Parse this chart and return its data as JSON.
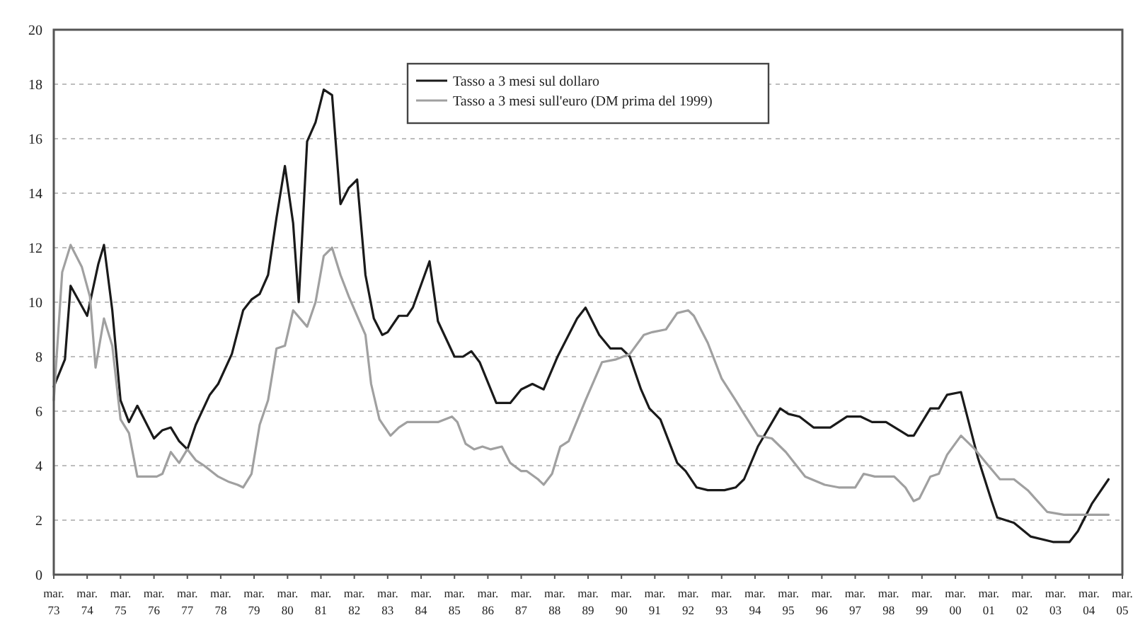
{
  "chart_data": {
    "type": "line",
    "ylim": [
      0,
      20
    ],
    "yticks": [
      0,
      2,
      4,
      6,
      8,
      10,
      12,
      14,
      16,
      18,
      20
    ],
    "xlim": [
      "1973-03",
      "2005-03"
    ],
    "xticks": [
      {
        "value": "1973-03",
        "label": "mar.\n73"
      },
      {
        "value": "1974-03",
        "label": "mar.\n74"
      },
      {
        "value": "1975-03",
        "label": "mar.\n75"
      },
      {
        "value": "1976-03",
        "label": "mar.\n76"
      },
      {
        "value": "1977-03",
        "label": "mar.\n77"
      },
      {
        "value": "1978-03",
        "label": "mar.\n78"
      },
      {
        "value": "1979-03",
        "label": "mar.\n79"
      },
      {
        "value": "1980-03",
        "label": "mar.\n80"
      },
      {
        "value": "1981-03",
        "label": "mar.\n81"
      },
      {
        "value": "1982-03",
        "label": "mar.\n82"
      },
      {
        "value": "1983-03",
        "label": "mar.\n83"
      },
      {
        "value": "1984-03",
        "label": "mar.\n84"
      },
      {
        "value": "1985-03",
        "label": "mar.\n85"
      },
      {
        "value": "1986-03",
        "label": "mar.\n86"
      },
      {
        "value": "1987-03",
        "label": "mar.\n87"
      },
      {
        "value": "1988-03",
        "label": "mar.\n88"
      },
      {
        "value": "1989-03",
        "label": "mar.\n89"
      },
      {
        "value": "1990-03",
        "label": "mar.\n90"
      },
      {
        "value": "1991-03",
        "label": "mar.\n91"
      },
      {
        "value": "1992-03",
        "label": "mar.\n92"
      },
      {
        "value": "1993-03",
        "label": "mar.\n93"
      },
      {
        "value": "1994-03",
        "label": "mar.\n94"
      },
      {
        "value": "1995-03",
        "label": "mar.\n95"
      },
      {
        "value": "1996-03",
        "label": "mar.\n96"
      },
      {
        "value": "1997-03",
        "label": "mar.\n97"
      },
      {
        "value": "1998-03",
        "label": "mar.\n98"
      },
      {
        "value": "1999-03",
        "label": "mar.\n99"
      },
      {
        "value": "2000-03",
        "label": "mar.\n00"
      },
      {
        "value": "2001-03",
        "label": "mar.\n01"
      },
      {
        "value": "2002-03",
        "label": "mar.\n02"
      },
      {
        "value": "2003-03",
        "label": "mar.\n03"
      },
      {
        "value": "2004-03",
        "label": "mar.\n04"
      },
      {
        "value": "2005-03",
        "label": "mar.\n05"
      }
    ],
    "grid": "y",
    "legend": "top",
    "marker": "none",
    "line_style": "solid",
    "series": [
      {
        "name": "Tasso a 3 mesi sul dollaro",
        "color": "#1a1a1a",
        "x": [
          "1973-03",
          "1973-07",
          "1973-09",
          "1974-03",
          "1974-07",
          "1974-09",
          "1974-12",
          "1975-03",
          "1975-06",
          "1975-09",
          "1976-03",
          "1976-06",
          "1976-09",
          "1976-12",
          "1977-03",
          "1977-06",
          "1977-11",
          "1978-02",
          "1978-07",
          "1978-11",
          "1979-02",
          "1979-05",
          "1979-08",
          "1979-11",
          "1980-02",
          "1980-05",
          "1980-07",
          "1980-10",
          "1981-01",
          "1981-04",
          "1981-07",
          "1981-10",
          "1982-01",
          "1982-04",
          "1982-07",
          "1982-10",
          "1983-01",
          "1983-03",
          "1983-07",
          "1983-10",
          "1983-12",
          "1984-06",
          "1984-09",
          "1985-03",
          "1985-06",
          "1985-09",
          "1985-12",
          "1986-06",
          "1986-11",
          "1987-03",
          "1987-07",
          "1987-11",
          "1988-04",
          "1988-11",
          "1989-02",
          "1989-07",
          "1989-11",
          "1990-03",
          "1990-06",
          "1990-10",
          "1991-01",
          "1991-05",
          "1991-11",
          "1992-02",
          "1992-06",
          "1992-10",
          "1993-04",
          "1993-08",
          "1993-11",
          "1994-04",
          "1994-12",
          "1995-03",
          "1995-07",
          "1995-12",
          "1996-06",
          "1996-12",
          "1997-05",
          "1997-09",
          "1998-02",
          "1998-10",
          "1998-12",
          "1999-06",
          "1999-09",
          "1999-12",
          "2000-05",
          "2000-11",
          "2001-04",
          "2001-06",
          "2001-12",
          "2002-06",
          "2003-02",
          "2003-08",
          "2003-11",
          "2004-04",
          "2004-10"
        ],
        "values": [
          6.9,
          7.9,
          10.6,
          9.5,
          11.4,
          12.1,
          9.7,
          6.4,
          5.6,
          6.2,
          5.0,
          5.3,
          5.4,
          4.9,
          4.6,
          5.5,
          6.6,
          7.0,
          8.1,
          9.7,
          10.1,
          10.3,
          11.0,
          13.1,
          15.0,
          12.9,
          10.0,
          15.9,
          16.6,
          17.8,
          17.6,
          13.6,
          14.2,
          14.5,
          11.0,
          9.4,
          8.8,
          8.9,
          9.5,
          9.5,
          9.8,
          11.5,
          9.3,
          8.0,
          8.0,
          8.2,
          7.8,
          6.3,
          6.3,
          6.8,
          7.0,
          6.8,
          8.0,
          9.4,
          9.8,
          8.8,
          8.3,
          8.3,
          8.0,
          6.8,
          6.1,
          5.7,
          4.1,
          3.8,
          3.2,
          3.1,
          3.1,
          3.2,
          3.5,
          4.7,
          6.1,
          5.9,
          5.8,
          5.4,
          5.4,
          5.8,
          5.8,
          5.6,
          5.6,
          5.1,
          5.1,
          6.1,
          6.1,
          6.6,
          6.7,
          4.3,
          2.7,
          2.1,
          1.9,
          1.4,
          1.2,
          1.2,
          1.6,
          2.6,
          3.5
        ]
      },
      {
        "name": "Tasso a 3 mesi sull'euro (DM prima del 1999)",
        "color": "#a0a0a0",
        "x": [
          "1973-03",
          "1973-06",
          "1973-09",
          "1974-01",
          "1974-04",
          "1974-06",
          "1974-09",
          "1974-12",
          "1975-03",
          "1975-06",
          "1975-09",
          "1975-12",
          "1976-04",
          "1976-06",
          "1976-09",
          "1976-12",
          "1977-03",
          "1977-06",
          "1977-09",
          "1978-02",
          "1978-06",
          "1978-09",
          "1978-11",
          "1979-02",
          "1979-05",
          "1979-08",
          "1979-11",
          "1980-02",
          "1980-05",
          "1980-10",
          "1981-01",
          "1981-04",
          "1981-07",
          "1981-10",
          "1982-01",
          "1982-04",
          "1982-07",
          "1982-09",
          "1982-12",
          "1983-04",
          "1983-07",
          "1983-10",
          "1984-05",
          "1984-09",
          "1985-02",
          "1985-04",
          "1985-07",
          "1985-10",
          "1986-01",
          "1986-04",
          "1986-08",
          "1986-11",
          "1987-03",
          "1987-05",
          "1987-09",
          "1987-11",
          "1988-02",
          "1988-05",
          "1988-08",
          "1989-02",
          "1989-08",
          "1990-01",
          "1990-06",
          "1990-11",
          "1991-02",
          "1991-07",
          "1991-11",
          "1992-03",
          "1992-05",
          "1992-10",
          "1993-03",
          "1993-08",
          "1993-11",
          "1994-04",
          "1994-09",
          "1995-02",
          "1995-09",
          "1996-04",
          "1996-09",
          "1997-03",
          "1997-06",
          "1997-10",
          "1998-05",
          "1998-09",
          "1998-12",
          "1999-02",
          "1999-06",
          "1999-09",
          "1999-12",
          "2000-05",
          "2000-10",
          "2001-02",
          "2001-07",
          "2001-12",
          "2002-05",
          "2002-12",
          "2003-06",
          "2004-03",
          "2004-10"
        ],
        "values": [
          6.4,
          11.1,
          12.1,
          11.3,
          10.2,
          7.6,
          9.4,
          8.4,
          5.7,
          5.2,
          3.6,
          3.6,
          3.6,
          3.7,
          4.5,
          4.1,
          4.6,
          4.2,
          4.0,
          3.6,
          3.4,
          3.3,
          3.2,
          3.7,
          5.5,
          6.4,
          8.3,
          8.4,
          9.7,
          9.1,
          10.0,
          11.7,
          12.0,
          11.0,
          10.2,
          9.5,
          8.8,
          7.0,
          5.7,
          5.1,
          5.4,
          5.6,
          5.6,
          5.6,
          5.8,
          5.6,
          4.8,
          4.6,
          4.7,
          4.6,
          4.7,
          4.1,
          3.8,
          3.8,
          3.5,
          3.3,
          3.7,
          4.7,
          4.9,
          6.4,
          7.8,
          7.9,
          8.1,
          8.8,
          8.9,
          9.0,
          9.6,
          9.7,
          9.5,
          8.5,
          7.2,
          6.4,
          5.9,
          5.1,
          5.0,
          4.5,
          3.6,
          3.3,
          3.2,
          3.2,
          3.7,
          3.6,
          3.6,
          3.2,
          2.7,
          2.8,
          3.6,
          3.7,
          4.4,
          5.1,
          4.6,
          4.1,
          3.5,
          3.5,
          3.1,
          2.3,
          2.2,
          2.2,
          2.2
        ]
      }
    ]
  }
}
